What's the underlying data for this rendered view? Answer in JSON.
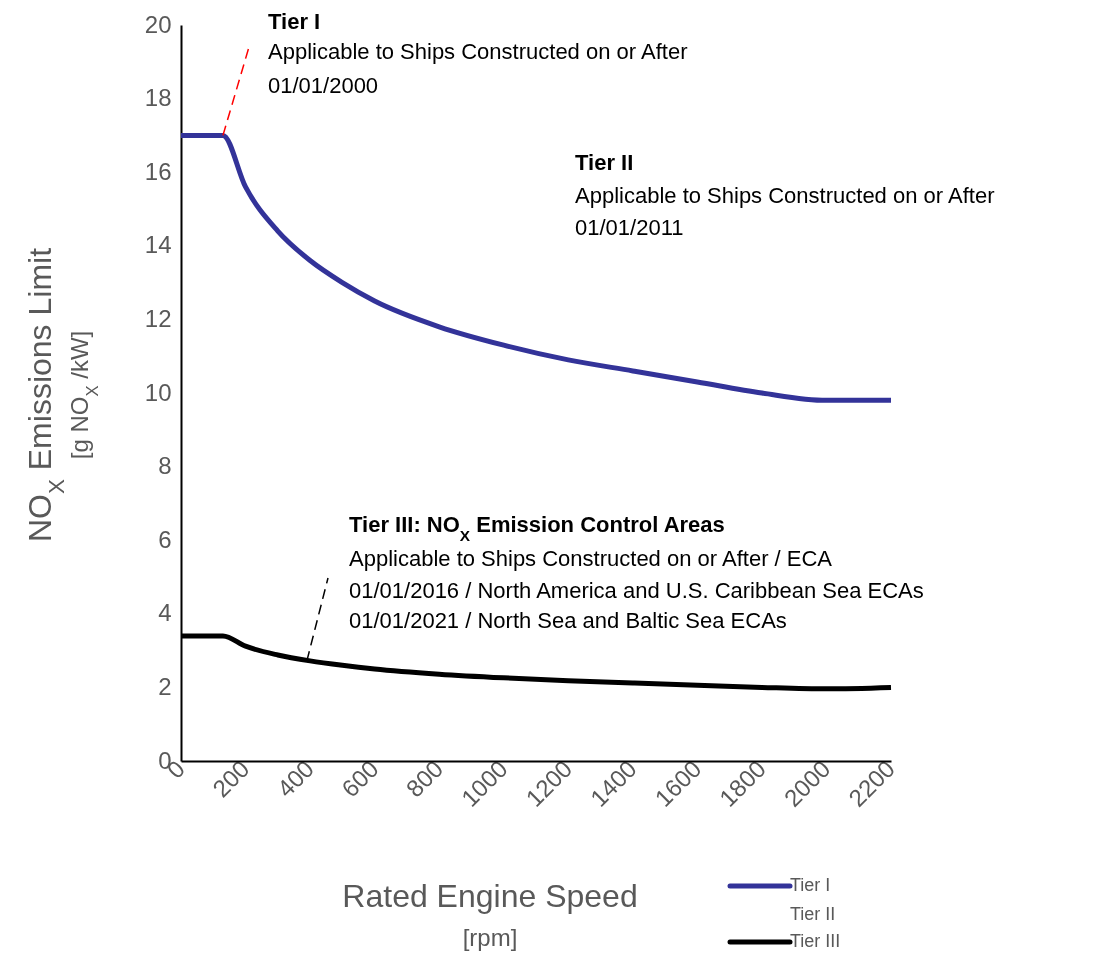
{
  "chart_data": {
    "type": "line",
    "xlabel": "Rated Engine Speed\n[rpm]",
    "ylabel": "NO$_{X}$ Emissions Limit\n[g NO$_{X}$ /kW]",
    "x": [
      0,
      130,
      200,
      300,
      400,
      500,
      600,
      800,
      1000,
      1200,
      1400,
      1600,
      1800,
      2000,
      2200
    ],
    "series": [
      {
        "name": "Tier I",
        "color": "#333399",
        "values": [
          17,
          17,
          15.6,
          14.4,
          13.6,
          13.0,
          12.5,
          11.8,
          11.3,
          10.9,
          10.6,
          10.3,
          10.0,
          9.8,
          9.8
        ]
      },
      {
        "name": "Tier III",
        "color": "#000000",
        "values": [
          3.4,
          3.4,
          3.12,
          2.88,
          2.72,
          2.6,
          2.5,
          2.36,
          2.26,
          2.18,
          2.12,
          2.06,
          2.0,
          1.96,
          2.0
        ]
      }
    ],
    "xlim": [
      0,
      2200
    ],
    "xticks": [
      0,
      200,
      400,
      600,
      800,
      1000,
      1200,
      1400,
      1600,
      1800,
      2000,
      2200
    ],
    "ylim": [
      0,
      20
    ],
    "yticks": [
      0,
      2,
      4,
      6,
      8,
      10,
      12,
      14,
      16,
      18,
      20
    ],
    "grid": false,
    "legend": "bottom right",
    "marker": "none",
    "line_style": "solid",
    "annotations": [
      "Tier I",
      {
        "text": "Applicable to Ships Constructed on or After",
        "x": 130,
        "y": 17
      },
      "01/01/2000",
      "Tier II",
      "Applicable to Ships Constructed on or After",
      "01/01/2011",
      "Tier III: NO$_{X}$ Emission Control Areas",
      {
        "text": "Applicable to Ships Constructed on or After / ECA",
        "x": 390,
        "y": 2.72
      },
      "01/01/2016  /  North America and U.S. Caribbean Sea ECAs",
      "01/01/2021  /  North Sea and Baltic Sea ECAs",
      "Tier II"
    ]
  }
}
